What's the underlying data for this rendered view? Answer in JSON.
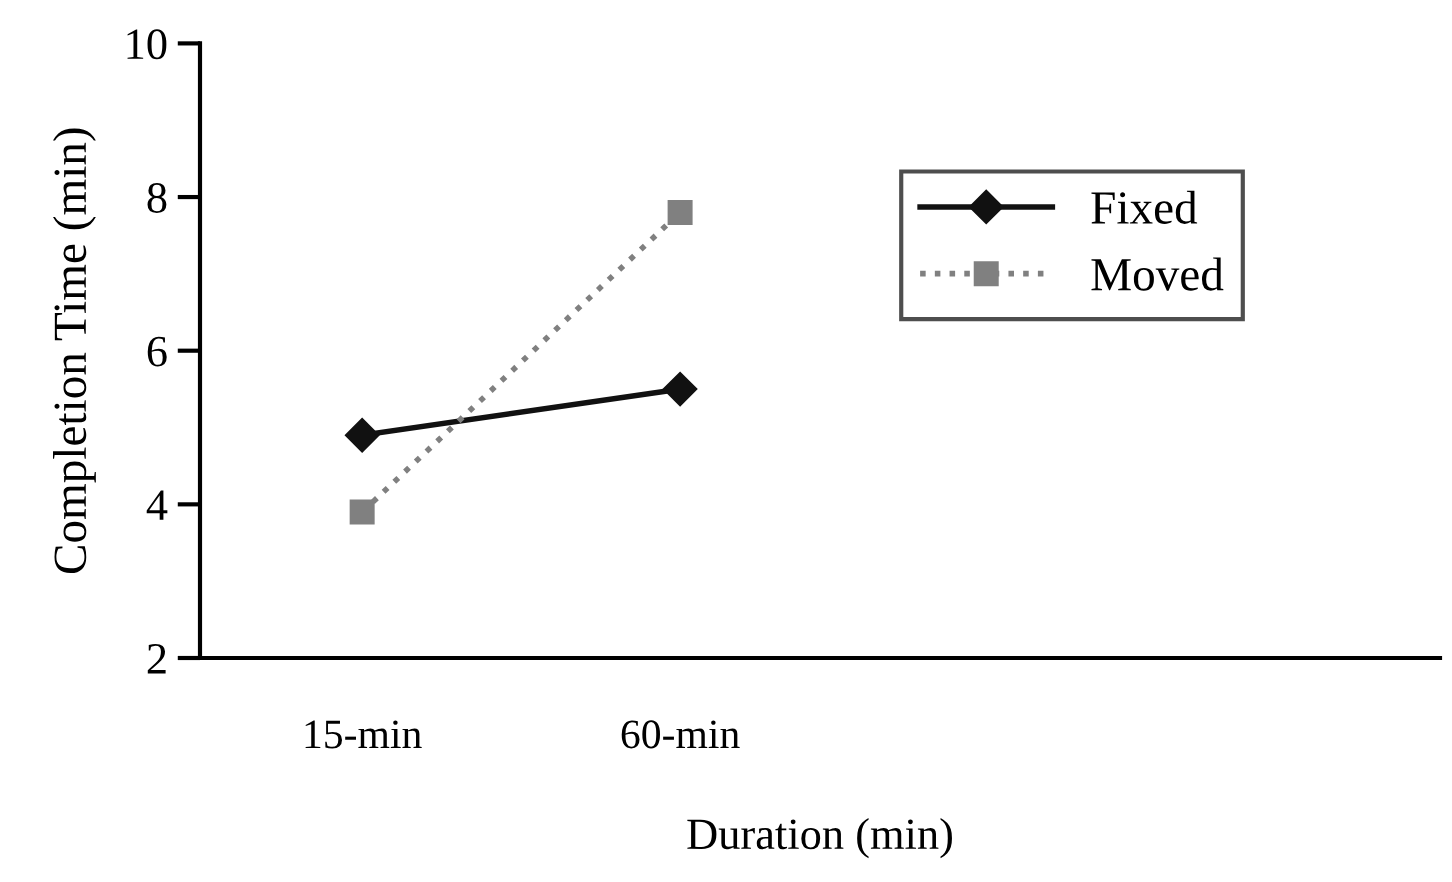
{
  "chart_data": {
    "type": "line",
    "xlabel": "Duration (min)",
    "ylabel": "Completion Time (min)",
    "categories": [
      "15-min",
      "60-min"
    ],
    "series": [
      {
        "name": "Fixed",
        "color": "#111111",
        "values": [
          4.9,
          5.5
        ],
        "marker": "diamond",
        "line_style": "solid"
      },
      {
        "name": "Moved",
        "color": "#808080",
        "values": [
          3.9,
          7.8
        ],
        "marker": "square",
        "line_style": "dotted"
      }
    ],
    "ylim": [
      2,
      10
    ],
    "yticks": [
      2,
      4,
      6,
      8,
      10
    ],
    "grid": false,
    "legend": "top right"
  }
}
